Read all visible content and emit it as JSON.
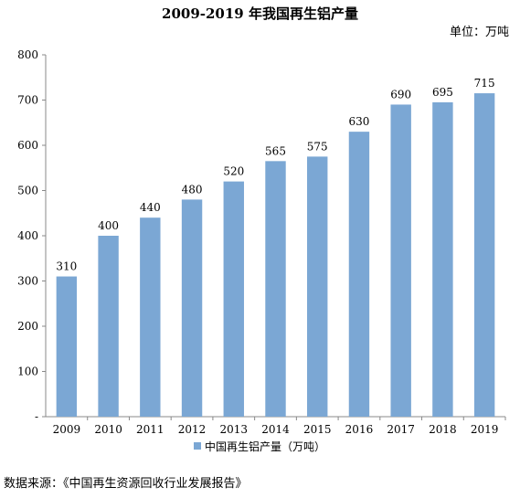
{
  "chart_data": {
    "type": "bar",
    "title": "2009-2019 年我国再生铝产量",
    "unit_label": "单位：万吨",
    "categories": [
      "2009",
      "2010",
      "2011",
      "2012",
      "2013",
      "2014",
      "2015",
      "2016",
      "2017",
      "2018",
      "2019"
    ],
    "series": [
      {
        "name": "中国再生铝产量（万吨）",
        "values": [
          310,
          400,
          440,
          480,
          520,
          565,
          575,
          630,
          690,
          695,
          715
        ],
        "color": "#7ba7d4"
      }
    ],
    "ylim": [
      0,
      800
    ],
    "yticks": [
      "-",
      "100",
      "200",
      "300",
      "400",
      "500",
      "600",
      "700",
      "800"
    ],
    "legend_position": "bottom",
    "grid": false
  },
  "source": "数据来源：《中国再生资源回收行业发展报告》"
}
